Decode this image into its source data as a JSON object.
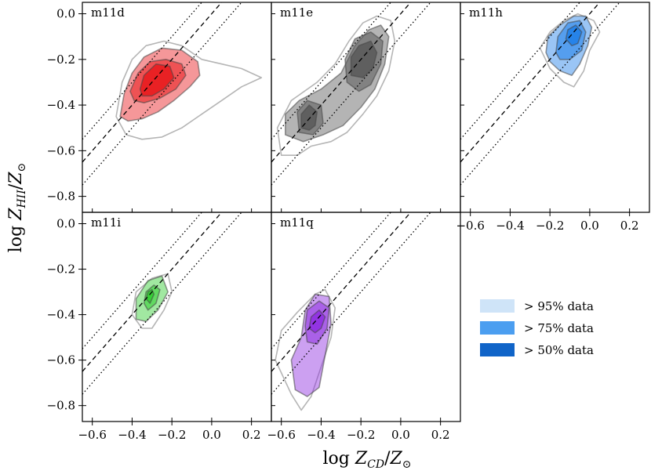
{
  "chart_data": {
    "type": "area",
    "xlabel": "log Z_CD/Z_⊙",
    "ylabel": "log Z_HII/Z_⊙",
    "xlim": [
      -0.65,
      0.3
    ],
    "ylim": [
      -0.87,
      0.05
    ],
    "x_ticks": [
      -0.6,
      -0.4,
      -0.2,
      0.0,
      0.2
    ],
    "x_tick_labels": [
      "−0.6",
      "−0.4",
      "−0.2",
      "0.0",
      "0.2"
    ],
    "y_ticks": [
      0.0,
      -0.2,
      -0.4,
      -0.6,
      -0.8
    ],
    "y_tick_labels": [
      "0.0",
      "−0.2",
      "−0.4",
      "−0.6",
      "−0.8"
    ],
    "reference_lines": [
      {
        "style": "dashed",
        "intercept": 0.0,
        "slope": 1
      },
      {
        "style": "dotted",
        "intercept": 0.1,
        "slope": 1
      },
      {
        "style": "dotted",
        "intercept": -0.1,
        "slope": 1
      }
    ],
    "legend": {
      "placement": "lower-right",
      "entries": [
        {
          "label": "> 95% data",
          "color": "#cfe4f8"
        },
        {
          "label": "> 75% data",
          "color": "#4b9ef0"
        },
        {
          "label": "> 50% data",
          "color": "#1064c8"
        }
      ]
    },
    "panels": [
      {
        "name": "m11d",
        "color": "#e8191c",
        "contours": [
          {
            "level": "outer",
            "points": [
              [
                -0.48,
                -0.45
              ],
              [
                -0.45,
                -0.3
              ],
              [
                -0.4,
                -0.2
              ],
              [
                -0.33,
                -0.14
              ],
              [
                -0.24,
                -0.12
              ],
              [
                -0.15,
                -0.14
              ],
              [
                -0.05,
                -0.2
              ],
              [
                0.05,
                -0.22
              ],
              [
                0.15,
                -0.24
              ],
              [
                0.25,
                -0.28
              ],
              [
                0.15,
                -0.32
              ],
              [
                0.05,
                -0.38
              ],
              [
                -0.05,
                -0.44
              ],
              [
                -0.15,
                -0.5
              ],
              [
                -0.25,
                -0.54
              ],
              [
                -0.35,
                -0.55
              ],
              [
                -0.43,
                -0.53
              ]
            ]
          },
          {
            "level": "95",
            "points": [
              [
                -0.46,
                -0.45
              ],
              [
                -0.44,
                -0.35
              ],
              [
                -0.4,
                -0.26
              ],
              [
                -0.34,
                -0.19
              ],
              [
                -0.25,
                -0.15
              ],
              [
                -0.15,
                -0.16
              ],
              [
                -0.07,
                -0.21
              ],
              [
                -0.06,
                -0.27
              ],
              [
                -0.11,
                -0.32
              ],
              [
                -0.19,
                -0.38
              ],
              [
                -0.27,
                -0.43
              ],
              [
                -0.35,
                -0.46
              ],
              [
                -0.42,
                -0.47
              ]
            ]
          },
          {
            "level": "75",
            "points": [
              [
                -0.41,
                -0.34
              ],
              [
                -0.37,
                -0.26
              ],
              [
                -0.31,
                -0.21
              ],
              [
                -0.23,
                -0.2
              ],
              [
                -0.15,
                -0.22
              ],
              [
                -0.13,
                -0.27
              ],
              [
                -0.18,
                -0.33
              ],
              [
                -0.26,
                -0.37
              ],
              [
                -0.34,
                -0.39
              ],
              [
                -0.39,
                -0.38
              ]
            ]
          },
          {
            "level": "50",
            "points": [
              [
                -0.36,
                -0.33
              ],
              [
                -0.34,
                -0.27
              ],
              [
                -0.28,
                -0.22
              ],
              [
                -0.21,
                -0.23
              ],
              [
                -0.19,
                -0.28
              ],
              [
                -0.24,
                -0.33
              ],
              [
                -0.3,
                -0.36
              ],
              [
                -0.35,
                -0.36
              ]
            ]
          }
        ]
      },
      {
        "name": "m11e",
        "color": "#595959",
        "contours": [
          {
            "level": "outer",
            "points": [
              [
                -0.6,
                -0.62
              ],
              [
                -0.62,
                -0.5
              ],
              [
                -0.55,
                -0.38
              ],
              [
                -0.42,
                -0.3
              ],
              [
                -0.33,
                -0.22
              ],
              [
                -0.26,
                -0.12
              ],
              [
                -0.19,
                -0.04
              ],
              [
                -0.12,
                -0.01
              ],
              [
                -0.05,
                -0.03
              ],
              [
                -0.03,
                -0.12
              ],
              [
                -0.06,
                -0.25
              ],
              [
                -0.12,
                -0.36
              ],
              [
                -0.19,
                -0.44
              ],
              [
                -0.27,
                -0.52
              ],
              [
                -0.35,
                -0.56
              ],
              [
                -0.45,
                -0.58
              ],
              [
                -0.52,
                -0.62
              ]
            ]
          },
          {
            "level": "95",
            "points": [
              [
                -0.58,
                -0.53
              ],
              [
                -0.58,
                -0.44
              ],
              [
                -0.51,
                -0.38
              ],
              [
                -0.4,
                -0.33
              ],
              [
                -0.3,
                -0.26
              ],
              [
                -0.23,
                -0.14
              ],
              [
                -0.16,
                -0.07
              ],
              [
                -0.1,
                -0.05
              ],
              [
                -0.06,
                -0.1
              ],
              [
                -0.08,
                -0.22
              ],
              [
                -0.13,
                -0.33
              ],
              [
                -0.2,
                -0.41
              ],
              [
                -0.29,
                -0.49
              ],
              [
                -0.39,
                -0.53
              ],
              [
                -0.49,
                -0.56
              ]
            ]
          },
          {
            "level": "75a",
            "points": [
              [
                -0.51,
                -0.52
              ],
              [
                -0.52,
                -0.43
              ],
              [
                -0.47,
                -0.38
              ],
              [
                -0.4,
                -0.4
              ],
              [
                -0.39,
                -0.48
              ],
              [
                -0.44,
                -0.53
              ]
            ]
          },
          {
            "level": "75b",
            "points": [
              [
                -0.27,
                -0.3
              ],
              [
                -0.28,
                -0.2
              ],
              [
                -0.23,
                -0.11
              ],
              [
                -0.15,
                -0.08
              ],
              [
                -0.09,
                -0.12
              ],
              [
                -0.1,
                -0.22
              ],
              [
                -0.15,
                -0.31
              ],
              [
                -0.21,
                -0.34
              ]
            ]
          },
          {
            "level": "50a",
            "points": [
              [
                -0.5,
                -0.5
              ],
              [
                -0.5,
                -0.44
              ],
              [
                -0.46,
                -0.4
              ],
              [
                -0.42,
                -0.43
              ],
              [
                -0.43,
                -0.49
              ],
              [
                -0.46,
                -0.51
              ]
            ]
          },
          {
            "level": "50b",
            "points": [
              [
                -0.25,
                -0.27
              ],
              [
                -0.25,
                -0.19
              ],
              [
                -0.21,
                -0.14
              ],
              [
                -0.15,
                -0.12
              ],
              [
                -0.12,
                -0.17
              ],
              [
                -0.14,
                -0.24
              ],
              [
                -0.19,
                -0.28
              ]
            ]
          }
        ]
      },
      {
        "name": "m11h",
        "color": "#1e7ee8",
        "contours": [
          {
            "level": "outer",
            "points": [
              [
                -0.2,
                -0.24
              ],
              [
                -0.25,
                -0.15
              ],
              [
                -0.2,
                -0.08
              ],
              [
                -0.13,
                -0.03
              ],
              [
                -0.06,
                0.0
              ],
              [
                0.02,
                -0.03
              ],
              [
                0.05,
                -0.08
              ],
              [
                0.0,
                -0.16
              ],
              [
                -0.03,
                -0.25
              ],
              [
                -0.08,
                -0.32
              ],
              [
                -0.13,
                -0.3
              ]
            ]
          },
          {
            "level": "95",
            "points": [
              [
                -0.22,
                -0.17
              ],
              [
                -0.21,
                -0.1
              ],
              [
                -0.15,
                -0.05
              ],
              [
                -0.08,
                -0.01
              ],
              [
                -0.02,
                -0.01
              ],
              [
                0.01,
                -0.06
              ],
              [
                -0.01,
                -0.14
              ],
              [
                -0.05,
                -0.22
              ],
              [
                -0.09,
                -0.27
              ],
              [
                -0.15,
                -0.25
              ],
              [
                -0.2,
                -0.21
              ]
            ]
          },
          {
            "level": "75",
            "points": [
              [
                -0.17,
                -0.17
              ],
              [
                -0.16,
                -0.1
              ],
              [
                -0.11,
                -0.04
              ],
              [
                -0.05,
                -0.03
              ],
              [
                -0.02,
                -0.08
              ],
              [
                -0.04,
                -0.16
              ],
              [
                -0.1,
                -0.2
              ],
              [
                -0.15,
                -0.2
              ]
            ]
          },
          {
            "level": "50",
            "points": [
              [
                -0.12,
                -0.11
              ],
              [
                -0.11,
                -0.07
              ],
              [
                -0.07,
                -0.05
              ],
              [
                -0.04,
                -0.08
              ],
              [
                -0.06,
                -0.13
              ],
              [
                -0.09,
                -0.14
              ]
            ]
          }
        ]
      },
      {
        "name": "m11i",
        "color": "#2ecc2e",
        "contours": [
          {
            "level": "outer",
            "points": [
              [
                -0.4,
                -0.4
              ],
              [
                -0.38,
                -0.3
              ],
              [
                -0.3,
                -0.24
              ],
              [
                -0.22,
                -0.22
              ],
              [
                -0.2,
                -0.3
              ],
              [
                -0.24,
                -0.38
              ],
              [
                -0.3,
                -0.46
              ],
              [
                -0.35,
                -0.46
              ]
            ]
          },
          {
            "level": "95",
            "points": [
              [
                -0.38,
                -0.42
              ],
              [
                -0.38,
                -0.33
              ],
              [
                -0.32,
                -0.25
              ],
              [
                -0.25,
                -0.23
              ],
              [
                -0.22,
                -0.3
              ],
              [
                -0.27,
                -0.38
              ],
              [
                -0.33,
                -0.43
              ]
            ]
          },
          {
            "level": "75",
            "points": [
              [
                -0.34,
                -0.35
              ],
              [
                -0.33,
                -0.3
              ],
              [
                -0.29,
                -0.27
              ],
              [
                -0.26,
                -0.29
              ],
              [
                -0.28,
                -0.35
              ],
              [
                -0.32,
                -0.38
              ]
            ]
          },
          {
            "level": "50",
            "points": [
              [
                -0.33,
                -0.33
              ],
              [
                -0.32,
                -0.3
              ],
              [
                -0.3,
                -0.29
              ],
              [
                -0.29,
                -0.31
              ],
              [
                -0.31,
                -0.35
              ]
            ]
          }
        ]
      },
      {
        "name": "m11q",
        "color": "#8e2de0",
        "contours": [
          {
            "level": "outer",
            "points": [
              [
                -0.55,
                -0.75
              ],
              [
                -0.63,
                -0.6
              ],
              [
                -0.6,
                -0.47
              ],
              [
                -0.52,
                -0.39
              ],
              [
                -0.43,
                -0.31
              ],
              [
                -0.38,
                -0.29
              ],
              [
                -0.33,
                -0.37
              ],
              [
                -0.35,
                -0.5
              ],
              [
                -0.4,
                -0.63
              ],
              [
                -0.45,
                -0.76
              ],
              [
                -0.5,
                -0.82
              ]
            ]
          },
          {
            "level": "95",
            "points": [
              [
                -0.53,
                -0.73
              ],
              [
                -0.55,
                -0.6
              ],
              [
                -0.5,
                -0.5
              ],
              [
                -0.48,
                -0.38
              ],
              [
                -0.43,
                -0.31
              ],
              [
                -0.36,
                -0.32
              ],
              [
                -0.35,
                -0.44
              ],
              [
                -0.38,
                -0.58
              ],
              [
                -0.41,
                -0.72
              ],
              [
                -0.47,
                -0.76
              ]
            ]
          },
          {
            "level": "75",
            "points": [
              [
                -0.48,
                -0.45
              ],
              [
                -0.47,
                -0.38
              ],
              [
                -0.41,
                -0.34
              ],
              [
                -0.36,
                -0.37
              ],
              [
                -0.37,
                -0.46
              ],
              [
                -0.42,
                -0.53
              ],
              [
                -0.47,
                -0.52
              ]
            ]
          },
          {
            "level": "50",
            "points": [
              [
                -0.46,
                -0.46
              ],
              [
                -0.45,
                -0.41
              ],
              [
                -0.41,
                -0.38
              ],
              [
                -0.38,
                -0.41
              ],
              [
                -0.4,
                -0.46
              ],
              [
                -0.43,
                -0.48
              ]
            ]
          }
        ]
      }
    ]
  }
}
